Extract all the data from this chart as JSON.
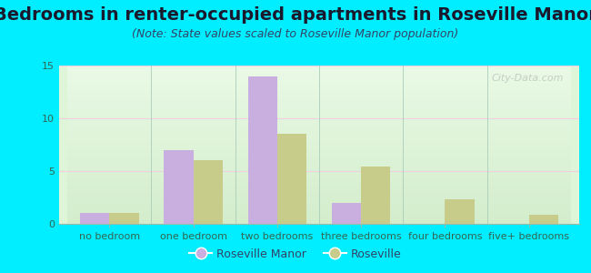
{
  "title": "Bedrooms in renter-occupied apartments in Roseville Manor",
  "subtitle": "(Note: State values scaled to Roseville Manor population)",
  "categories": [
    "no bedroom",
    "one bedroom",
    "two bedrooms",
    "three bedrooms",
    "four bedrooms",
    "five+ bedrooms"
  ],
  "roseville_manor": [
    1.0,
    7.0,
    14.0,
    2.0,
    0.0,
    0.0
  ],
  "roseville": [
    1.0,
    6.0,
    8.5,
    5.4,
    2.3,
    0.9
  ],
  "color_manor": "#c9aee0",
  "color_roseville": "#c8cc8a",
  "bg_color": "#00eeff",
  "plot_bg": "#e8f5e2",
  "ylim": [
    0,
    15
  ],
  "yticks": [
    0,
    5,
    10,
    15
  ],
  "bar_width": 0.35,
  "legend_labels": [
    "Roseville Manor",
    "Roseville"
  ],
  "watermark": "City-Data.com",
  "title_fontsize": 14,
  "subtitle_fontsize": 9,
  "axis_fontsize": 8,
  "legend_fontsize": 9
}
